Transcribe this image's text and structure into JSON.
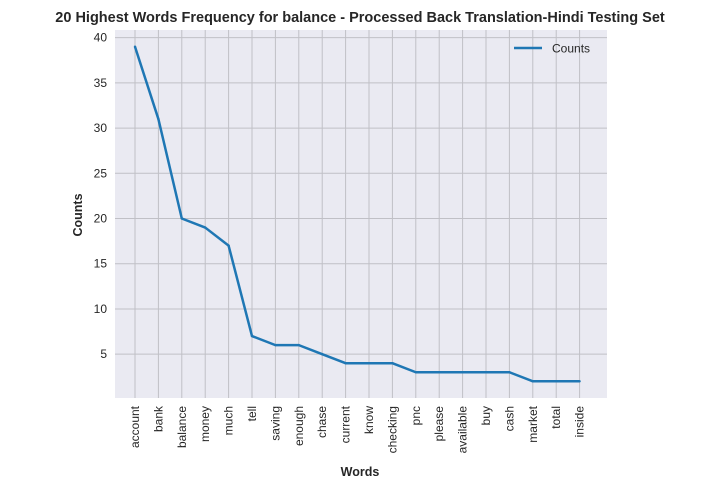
{
  "chart_data": {
    "type": "line",
    "title": "20 Highest Words Frequency for balance - Processed Back Translation-Hindi Testing Set",
    "xlabel": "Words",
    "ylabel": "Counts",
    "categories": [
      "account",
      "bank",
      "balance",
      "money",
      "much",
      "tell",
      "saving",
      "enough",
      "chase",
      "current",
      "know",
      "checking",
      "pnc",
      "please",
      "available",
      "buy",
      "cash",
      "market",
      "total",
      "inside"
    ],
    "series": [
      {
        "name": "Counts",
        "values": [
          39,
          31,
          20,
          19,
          17,
          7,
          6,
          6,
          5,
          4,
          4,
          4,
          3,
          3,
          3,
          3,
          3,
          2,
          2,
          2
        ],
        "color": "#1f77b4"
      }
    ],
    "yticks": [
      5,
      10,
      15,
      20,
      25,
      30,
      35,
      40
    ],
    "ylim": [
      0.15,
      40.85
    ],
    "grid": true,
    "legend": "top-right",
    "colors": {
      "plot_background": "#eaeaf2",
      "grid": "#c0c0c6",
      "line": "#1f77b4"
    }
  }
}
